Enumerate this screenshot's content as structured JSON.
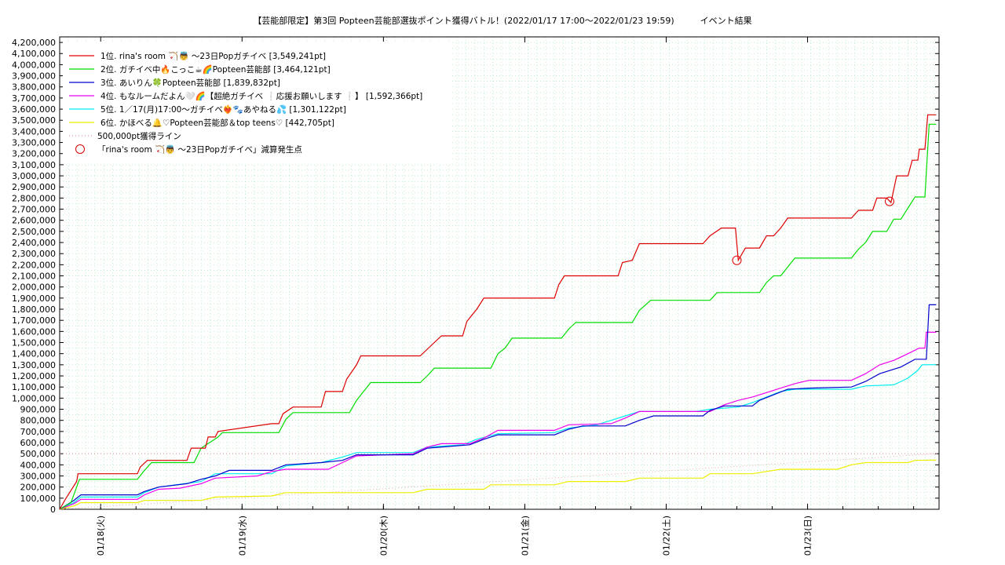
{
  "chart_data": {
    "type": "line",
    "title": "【芸能部限定】第3回 Popteen芸能部選抜ポイント獲得バトル！(2022/01/17 17:00〜2022/01/23 19:59)　　　イベント結果",
    "xlabel": "",
    "ylabel": "",
    "x_range_days": [
      0,
      6.12
    ],
    "ylim": [
      0,
      4250000
    ],
    "yticks": [
      0,
      100000,
      200000,
      300000,
      400000,
      500000,
      600000,
      700000,
      800000,
      900000,
      1000000,
      1100000,
      1200000,
      1300000,
      1400000,
      1500000,
      1600000,
      1700000,
      1800000,
      1900000,
      2000000,
      2100000,
      2200000,
      2300000,
      2400000,
      2500000,
      2600000,
      2700000,
      2800000,
      2900000,
      3000000,
      3100000,
      3200000,
      3300000,
      3400000,
      3500000,
      3600000,
      3700000,
      3800000,
      3900000,
      4000000,
      4100000,
      4200000
    ],
    "ytick_labels": [
      "0",
      "100,000",
      "200,000",
      "300,000",
      "400,000",
      "500,000",
      "600,000",
      "700,000",
      "800,000",
      "900,000",
      "1,000,000",
      "1,100,000",
      "1,200,000",
      "1,300,000",
      "1,400,000",
      "1,500,000",
      "1,600,000",
      "1,700,000",
      "1,800,000",
      "1,900,000",
      "2,000,000",
      "2,100,000",
      "2,200,000",
      "2,300,000",
      "2,400,000",
      "2,500,000",
      "2,600,000",
      "2,700,000",
      "2,800,000",
      "2,900,000",
      "3,000,000",
      "3,100,000",
      "3,200,000",
      "3,300,000",
      "3,400,000",
      "3,500,000",
      "3,600,000",
      "3,700,000",
      "3,800,000",
      "3,900,000",
      "4,000,000",
      "4,100,000",
      "4,200,000"
    ],
    "xticks": [
      {
        "day": 0.29,
        "label": "01/18(火)"
      },
      {
        "day": 1.29,
        "label": "01/19(水)"
      },
      {
        "day": 2.29,
        "label": "01/20(木)"
      },
      {
        "day": 3.29,
        "label": "01/21(金)"
      },
      {
        "day": 4.29,
        "label": "01/22(土)"
      },
      {
        "day": 5.29,
        "label": "01/23(日)"
      }
    ],
    "grid": true,
    "legend_position": "top-left",
    "series": [
      {
        "name": "1位. rina's room 🏹👼 〜23日Popガチイベ [3,549,241pt]",
        "color": "#dd0000",
        "points": [
          [
            0,
            0
          ],
          [
            0.04,
            90000
          ],
          [
            0.08,
            170000
          ],
          [
            0.12,
            250000
          ],
          [
            0.13,
            320000
          ],
          [
            0.55,
            320000
          ],
          [
            0.57,
            380000
          ],
          [
            0.62,
            440000
          ],
          [
            0.9,
            440000
          ],
          [
            0.93,
            550000
          ],
          [
            1.03,
            550000
          ],
          [
            1.05,
            650000
          ],
          [
            1.1,
            650000
          ],
          [
            1.12,
            700000
          ],
          [
            1.5,
            770000
          ],
          [
            1.55,
            770000
          ],
          [
            1.58,
            860000
          ],
          [
            1.65,
            920000
          ],
          [
            1.85,
            920000
          ],
          [
            1.88,
            1060000
          ],
          [
            2.0,
            1060000
          ],
          [
            2.03,
            1170000
          ],
          [
            2.1,
            1300000
          ],
          [
            2.13,
            1380000
          ],
          [
            2.55,
            1380000
          ],
          [
            2.6,
            1440000
          ],
          [
            2.65,
            1500000
          ],
          [
            2.7,
            1560000
          ],
          [
            2.85,
            1560000
          ],
          [
            2.88,
            1690000
          ],
          [
            2.95,
            1800000
          ],
          [
            3.0,
            1900000
          ],
          [
            3.5,
            1900000
          ],
          [
            3.53,
            2020000
          ],
          [
            3.57,
            2100000
          ],
          [
            3.95,
            2100000
          ],
          [
            3.98,
            2220000
          ],
          [
            4.05,
            2240000
          ],
          [
            4.1,
            2390000
          ],
          [
            4.55,
            2390000
          ],
          [
            4.6,
            2460000
          ],
          [
            4.68,
            2530000
          ],
          [
            4.78,
            2530000
          ],
          [
            4.8,
            2240000
          ],
          [
            4.85,
            2350000
          ],
          [
            4.95,
            2350000
          ],
          [
            5.0,
            2460000
          ],
          [
            5.05,
            2460000
          ],
          [
            5.1,
            2530000
          ],
          [
            5.15,
            2620000
          ],
          [
            5.6,
            2620000
          ],
          [
            5.65,
            2690000
          ],
          [
            5.75,
            2690000
          ],
          [
            5.78,
            2800000
          ],
          [
            5.85,
            2800000
          ],
          [
            5.88,
            2760000
          ],
          [
            5.92,
            3000000
          ],
          [
            6.0,
            3000000
          ],
          [
            6.03,
            3140000
          ],
          [
            6.07,
            3140000
          ],
          [
            6.08,
            3240000
          ],
          [
            6.12,
            3240000
          ],
          [
            6.14,
            3549241
          ],
          [
            6.2,
            3549241
          ]
        ]
      },
      {
        "name": "2位. ガチイベ中🔥こっこ☕🌈Popteen芸能部 [3,464,121pt]",
        "color": "#00dd00",
        "points": [
          [
            0,
            0
          ],
          [
            0.08,
            60000
          ],
          [
            0.12,
            200000
          ],
          [
            0.14,
            270000
          ],
          [
            0.55,
            270000
          ],
          [
            0.6,
            350000
          ],
          [
            0.65,
            420000
          ],
          [
            0.95,
            420000
          ],
          [
            1.0,
            550000
          ],
          [
            1.12,
            650000
          ],
          [
            1.15,
            690000
          ],
          [
            1.55,
            690000
          ],
          [
            1.6,
            810000
          ],
          [
            1.65,
            870000
          ],
          [
            2.05,
            870000
          ],
          [
            2.1,
            980000
          ],
          [
            2.2,
            1140000
          ],
          [
            2.55,
            1140000
          ],
          [
            2.6,
            1200000
          ],
          [
            2.65,
            1270000
          ],
          [
            3.05,
            1270000
          ],
          [
            3.1,
            1400000
          ],
          [
            3.15,
            1450000
          ],
          [
            3.2,
            1540000
          ],
          [
            3.55,
            1540000
          ],
          [
            3.6,
            1620000
          ],
          [
            3.65,
            1680000
          ],
          [
            4.05,
            1680000
          ],
          [
            4.1,
            1790000
          ],
          [
            4.18,
            1880000
          ],
          [
            4.6,
            1880000
          ],
          [
            4.65,
            1950000
          ],
          [
            4.95,
            1950000
          ],
          [
            5.0,
            2040000
          ],
          [
            5.05,
            2100000
          ],
          [
            5.1,
            2100000
          ],
          [
            5.15,
            2180000
          ],
          [
            5.2,
            2260000
          ],
          [
            5.6,
            2260000
          ],
          [
            5.65,
            2340000
          ],
          [
            5.7,
            2400000
          ],
          [
            5.75,
            2500000
          ],
          [
            5.85,
            2500000
          ],
          [
            5.9,
            2610000
          ],
          [
            5.95,
            2610000
          ],
          [
            6.0,
            2710000
          ],
          [
            6.05,
            2810000
          ],
          [
            6.12,
            2810000
          ],
          [
            6.15,
            3464121
          ],
          [
            6.2,
            3464121
          ]
        ]
      },
      {
        "name": "3位. あいりん🍀Popteen芸能部 [1,839,832pt]",
        "color": "#0000cc",
        "points": [
          [
            0,
            0
          ],
          [
            0.1,
            80000
          ],
          [
            0.15,
            130000
          ],
          [
            0.55,
            130000
          ],
          [
            0.6,
            160000
          ],
          [
            0.7,
            200000
          ],
          [
            0.9,
            230000
          ],
          [
            1.0,
            270000
          ],
          [
            1.1,
            300000
          ],
          [
            1.2,
            350000
          ],
          [
            1.5,
            350000
          ],
          [
            1.6,
            400000
          ],
          [
            1.85,
            420000
          ],
          [
            2.0,
            440000
          ],
          [
            2.1,
            490000
          ],
          [
            2.5,
            490000
          ],
          [
            2.6,
            550000
          ],
          [
            2.9,
            580000
          ],
          [
            3.0,
            630000
          ],
          [
            3.1,
            670000
          ],
          [
            3.5,
            670000
          ],
          [
            3.6,
            720000
          ],
          [
            3.7,
            750000
          ],
          [
            4.0,
            750000
          ],
          [
            4.1,
            800000
          ],
          [
            4.2,
            840000
          ],
          [
            4.55,
            840000
          ],
          [
            4.6,
            890000
          ],
          [
            4.7,
            930000
          ],
          [
            4.9,
            930000
          ],
          [
            4.95,
            980000
          ],
          [
            5.05,
            1030000
          ],
          [
            5.15,
            1080000
          ],
          [
            5.3,
            1090000
          ],
          [
            5.6,
            1100000
          ],
          [
            5.7,
            1150000
          ],
          [
            5.8,
            1220000
          ],
          [
            5.95,
            1280000
          ],
          [
            6.05,
            1350000
          ],
          [
            6.13,
            1350000
          ],
          [
            6.15,
            1839832
          ],
          [
            6.2,
            1839832
          ]
        ]
      },
      {
        "name": "4位. もなルームだよん🤍🌈【超絶ガチイベ ❕応援お願いします ❕】 [1,592,366pt]",
        "color": "#ee00ee",
        "points": [
          [
            0,
            0
          ],
          [
            0.1,
            50000
          ],
          [
            0.15,
            90000
          ],
          [
            0.55,
            90000
          ],
          [
            0.6,
            130000
          ],
          [
            0.7,
            180000
          ],
          [
            0.85,
            190000
          ],
          [
            1.0,
            230000
          ],
          [
            1.1,
            280000
          ],
          [
            1.4,
            300000
          ],
          [
            1.5,
            340000
          ],
          [
            1.6,
            360000
          ],
          [
            1.9,
            360000
          ],
          [
            2.0,
            420000
          ],
          [
            2.1,
            480000
          ],
          [
            2.5,
            500000
          ],
          [
            2.6,
            560000
          ],
          [
            2.7,
            590000
          ],
          [
            2.9,
            590000
          ],
          [
            3.0,
            640000
          ],
          [
            3.1,
            710000
          ],
          [
            3.5,
            710000
          ],
          [
            3.6,
            760000
          ],
          [
            3.9,
            770000
          ],
          [
            4.0,
            820000
          ],
          [
            4.1,
            880000
          ],
          [
            4.6,
            880000
          ],
          [
            4.7,
            940000
          ],
          [
            4.8,
            980000
          ],
          [
            4.9,
            1010000
          ],
          [
            5.0,
            1050000
          ],
          [
            5.1,
            1090000
          ],
          [
            5.2,
            1130000
          ],
          [
            5.3,
            1160000
          ],
          [
            5.6,
            1160000
          ],
          [
            5.7,
            1220000
          ],
          [
            5.8,
            1300000
          ],
          [
            5.9,
            1340000
          ],
          [
            6.0,
            1400000
          ],
          [
            6.08,
            1450000
          ],
          [
            6.12,
            1450000
          ],
          [
            6.13,
            1592366
          ],
          [
            6.2,
            1592366
          ]
        ]
      },
      {
        "name": "5位. 1／17(月)17:00〜ガチイベ❤‍🔥🐾あやねる💦 [1,301,122pt]",
        "color": "#00eeee",
        "points": [
          [
            0,
            0
          ],
          [
            0.1,
            60000
          ],
          [
            0.15,
            110000
          ],
          [
            0.55,
            110000
          ],
          [
            0.6,
            150000
          ],
          [
            0.7,
            200000
          ],
          [
            1.0,
            250000
          ],
          [
            1.1,
            320000
          ],
          [
            1.5,
            320000
          ],
          [
            1.6,
            390000
          ],
          [
            1.85,
            420000
          ],
          [
            2.0,
            470000
          ],
          [
            2.1,
            510000
          ],
          [
            2.5,
            510000
          ],
          [
            2.6,
            560000
          ],
          [
            2.85,
            580000
          ],
          [
            2.95,
            630000
          ],
          [
            3.1,
            680000
          ],
          [
            3.5,
            690000
          ],
          [
            3.6,
            730000
          ],
          [
            3.8,
            760000
          ],
          [
            3.9,
            800000
          ],
          [
            4.0,
            840000
          ],
          [
            4.1,
            880000
          ],
          [
            4.5,
            880000
          ],
          [
            4.6,
            900000
          ],
          [
            4.8,
            920000
          ],
          [
            4.9,
            960000
          ],
          [
            5.0,
            1010000
          ],
          [
            5.1,
            1060000
          ],
          [
            5.2,
            1080000
          ],
          [
            5.6,
            1080000
          ],
          [
            5.7,
            1110000
          ],
          [
            5.9,
            1120000
          ],
          [
            6.0,
            1180000
          ],
          [
            6.07,
            1250000
          ],
          [
            6.1,
            1300000
          ],
          [
            6.2,
            1301122
          ]
        ]
      },
      {
        "name": "6位. かほべる🔔♡Popteen芸能部＆top teens♡ [442,705pt]",
        "color": "#eeee00",
        "points": [
          [
            0,
            0
          ],
          [
            0.1,
            30000
          ],
          [
            0.15,
            60000
          ],
          [
            0.55,
            60000
          ],
          [
            0.6,
            80000
          ],
          [
            1.0,
            80000
          ],
          [
            1.1,
            110000
          ],
          [
            1.5,
            120000
          ],
          [
            1.6,
            150000
          ],
          [
            2.5,
            150000
          ],
          [
            2.6,
            180000
          ],
          [
            3.0,
            180000
          ],
          [
            3.05,
            220000
          ],
          [
            3.5,
            220000
          ],
          [
            3.6,
            250000
          ],
          [
            4.0,
            250000
          ],
          [
            4.1,
            280000
          ],
          [
            4.55,
            280000
          ],
          [
            4.6,
            320000
          ],
          [
            4.9,
            320000
          ],
          [
            5.0,
            340000
          ],
          [
            5.1,
            360000
          ],
          [
            5.5,
            360000
          ],
          [
            5.6,
            400000
          ],
          [
            5.7,
            420000
          ],
          [
            6.0,
            420000
          ],
          [
            6.05,
            440000
          ],
          [
            6.2,
            442705
          ]
        ]
      }
    ],
    "reference_line": {
      "name": "500,000pt獲得ライン",
      "color": "#e88888",
      "value": 500000
    },
    "diagonal_reference": {
      "color": "#e8b0b0",
      "points": [
        [
          0,
          0
        ],
        [
          6.2,
          500000
        ]
      ]
    },
    "markers": {
      "name": "「rina's room 🏹👼 〜23日Popガチイベ」減算発生点",
      "color": "#dd0000",
      "points": [
        [
          4.79,
          2240000
        ],
        [
          5.87,
          2770000
        ]
      ]
    }
  }
}
